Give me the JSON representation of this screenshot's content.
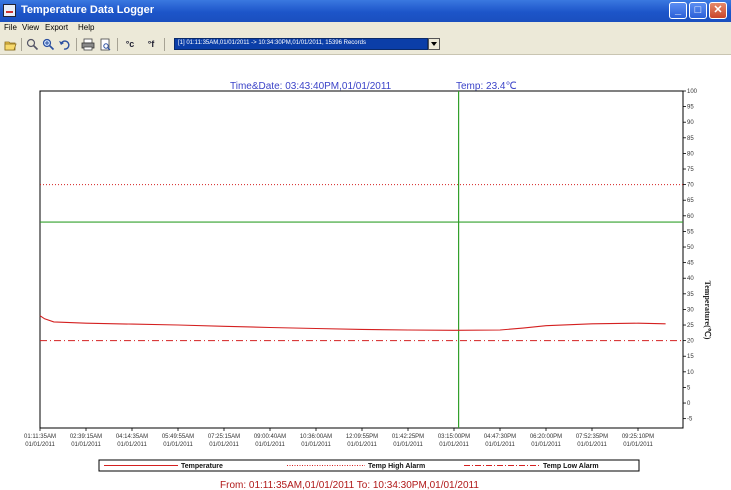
{
  "window": {
    "title": "Temperature Data Logger",
    "icon": "app-icon",
    "controls": [
      "minimize-icon",
      "maximize-icon",
      "close-icon"
    ]
  },
  "menu": [
    "File",
    "View",
    "Export",
    "Help"
  ],
  "toolbar": {
    "buttons": [
      "open-icon",
      "zoom-in-icon",
      "zoom-out-icon",
      "undo-icon",
      "print-icon",
      "print-preview-icon",
      "celsius-icon",
      "fahrenheit-icon"
    ],
    "celsius_label": "°c",
    "fahrenheit_label": "°f",
    "range_selected": "[1] 01:11:35AM,01/01/2011 -> 10:34:30PM,01/01/2011, 15396 Records"
  },
  "chart_header": {
    "time_date": "Time&Date: 03:43:40PM,01/01/2011",
    "temp": "Temp: 23.4℃"
  },
  "chart_data": {
    "type": "line",
    "title": "",
    "xlabel": "",
    "ylabel": "Temperature(℃)",
    "ylim": [
      -8,
      100
    ],
    "yticks": [
      100,
      95,
      90,
      85,
      80,
      75,
      70,
      65,
      60,
      55,
      50,
      45,
      40,
      35,
      30,
      25,
      20,
      15,
      10,
      5,
      0,
      -5
    ],
    "x_ticks": [
      {
        "time": "01:11:35AM",
        "date": "01/01/2011"
      },
      {
        "time": "02:39:15AM",
        "date": "01/01/2011"
      },
      {
        "time": "04:14:35AM",
        "date": "01/01/2011"
      },
      {
        "time": "05:49:55AM",
        "date": "01/01/2011"
      },
      {
        "time": "07:25:15AM",
        "date": "01/01/2011"
      },
      {
        "time": "09:00:40AM",
        "date": "01/01/2011"
      },
      {
        "time": "10:36:00AM",
        "date": "01/01/2011"
      },
      {
        "time": "12:09:55PM",
        "date": "01/01/2011"
      },
      {
        "time": "01:42:25PM",
        "date": "01/01/2011"
      },
      {
        "time": "03:15:00PM",
        "date": "01/01/2011"
      },
      {
        "time": "04:47:30PM",
        "date": "01/01/2011"
      },
      {
        "time": "06:20:00PM",
        "date": "01/01/2011"
      },
      {
        "time": "07:52:35PM",
        "date": "01/01/2011"
      },
      {
        "time": "09:25:10PM",
        "date": "01/01/2011"
      }
    ],
    "series": [
      {
        "name": "Temperature",
        "color": "#d42020",
        "x": [
          0,
          0.1,
          0.3,
          1,
          2,
          3,
          4,
          5,
          6,
          7,
          8,
          9,
          10,
          10.5,
          11,
          12,
          13,
          13.6
        ],
        "values": [
          28,
          27,
          26,
          25.6,
          25.3,
          25.0,
          24.6,
          24.2,
          23.9,
          23.6,
          23.4,
          23.3,
          23.4,
          24.0,
          24.8,
          25.4,
          25.6,
          25.4
        ]
      }
    ],
    "alarms": [
      {
        "name": "Temp High Alarm",
        "value": 70,
        "color": "#d42020",
        "style": "dotted"
      },
      {
        "name": "Temp Low Alarm",
        "value": 20,
        "color": "#d42020",
        "style": "dash-dot"
      }
    ],
    "cursor": {
      "x_index": 9.1,
      "y_value": 58,
      "color": "#33a02c"
    },
    "legend_position": "bottom"
  },
  "footer": {
    "range": "From: 01:11:35AM,01/01/2011    To: 10:34:30PM,01/01/2011"
  }
}
